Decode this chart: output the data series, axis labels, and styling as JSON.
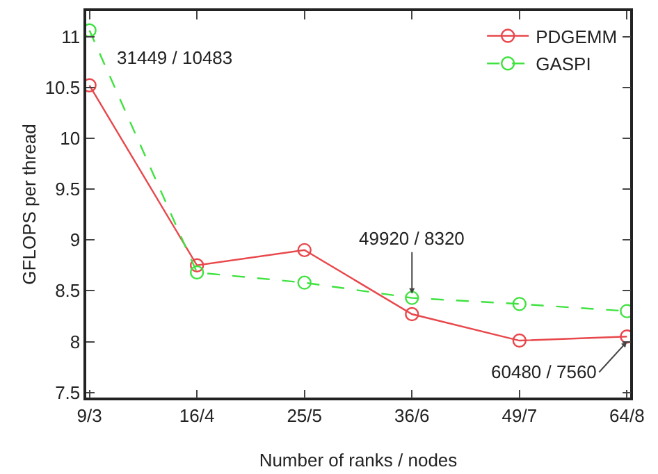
{
  "chart_data": {
    "type": "line",
    "xlabel": "Number of ranks / nodes",
    "ylabel": "GFLOPS per thread",
    "categories": [
      "9/3",
      "16/4",
      "25/5",
      "36/6",
      "49/7",
      "64/8"
    ],
    "ylim": [
      7.45,
      11.25
    ],
    "yticks": [
      {
        "value": 7.5,
        "label": "7.5"
      },
      8,
      {
        "value": 8.5,
        "label": "8.5"
      },
      9,
      {
        "value": 9.5,
        "label": "9.5"
      },
      10,
      {
        "value": 10.5,
        "label": "10.5"
      },
      11
    ],
    "series": [
      {
        "name": "PDGEMM",
        "color": "#e8474b",
        "line_style": "solid",
        "values": [
          10.52,
          8.75,
          8.9,
          8.27,
          8.01,
          8.05
        ]
      },
      {
        "name": "GASPI",
        "color": "#3fe23f",
        "line_style": "dashed",
        "values": [
          11.06,
          8.68,
          8.58,
          8.43,
          8.37,
          8.3
        ]
      }
    ],
    "marker": "circle",
    "grid": false,
    "legend": "top right",
    "annotations": [
      "31449 / 10483",
      {
        "text": "49920 / 8320",
        "x": "36/6",
        "y": 8.47
      },
      {
        "text": "60480 / 7560",
        "x": "64/8",
        "y": 8.0
      }
    ]
  }
}
